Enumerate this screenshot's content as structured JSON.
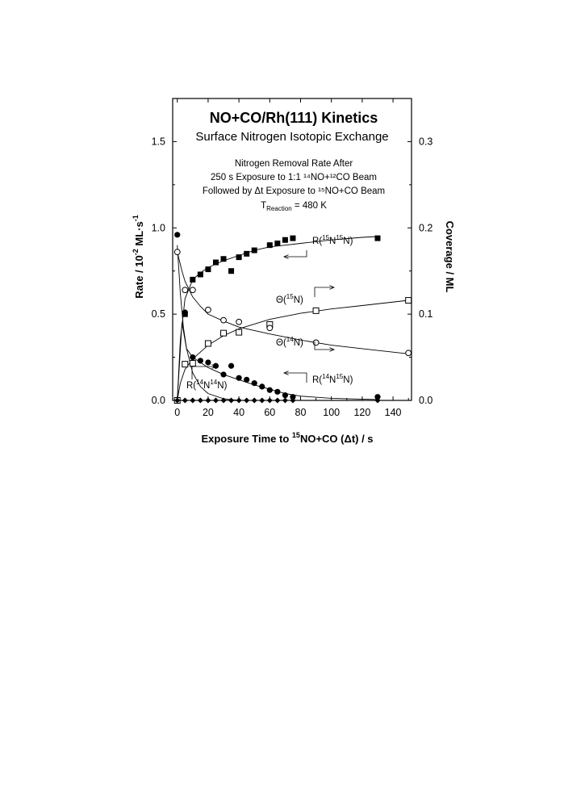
{
  "chart_data": {
    "type": "scatter",
    "title": "NO+CO/Rh(111) Kinetics",
    "subtitle": "Surface Nitrogen Isotopic Exchange",
    "annotation_lines": [
      "Nitrogen Removal Rate After",
      "250 s Exposure to 1:1 ¹⁴NO+¹²CO Beam",
      "Followed by Δt Exposure to ¹⁵NO+CO Beam"
    ],
    "reaction_temp": {
      "prefix": "T",
      "sub": "Reaction",
      "suffix": " = 480 K"
    },
    "xlabel": {
      "pre": "Exposure Time to ",
      "sup": "15",
      "post": "NO+CO (Δt) / s"
    },
    "ylabel_left": {
      "pre": "Rate / 10",
      "sup": "-2",
      "mid": " ML·s",
      "sup2": "-1"
    },
    "ylabel_right": "Coverage / ML",
    "xlim": [
      -3,
      152
    ],
    "ylim_left": [
      0,
      1.75
    ],
    "ylim_right": [
      0,
      0.35
    ],
    "xticks": [
      0,
      20,
      40,
      60,
      80,
      100,
      120,
      140
    ],
    "xtick_labels": [
      "0",
      "20",
      "40",
      "60",
      "80",
      "100",
      "120",
      "140"
    ],
    "yticks_left": [
      0.0,
      0.5,
      1.0,
      1.5
    ],
    "ytick_labels_left": [
      "0.0",
      "0.5",
      "1.0",
      "1.5"
    ],
    "yticks_right": [
      0.0,
      0.1,
      0.2,
      0.3
    ],
    "ytick_labels_right": [
      "0.0",
      "0.1",
      "0.2",
      "0.3"
    ],
    "series": [
      {
        "key": "r1515",
        "label": {
          "pre": "R(",
          "s1": "15",
          "m": "N",
          "s2": "15",
          "post": "N)"
        },
        "axis": "left",
        "marker": "filled-square",
        "x": [
          0,
          5,
          10,
          15,
          20,
          25,
          30,
          35,
          40,
          45,
          50,
          60,
          65,
          70,
          75,
          130
        ],
        "y": [
          0.0,
          0.5,
          0.7,
          0.73,
          0.76,
          0.8,
          0.82,
          0.75,
          0.83,
          0.85,
          0.87,
          0.9,
          0.91,
          0.93,
          0.94,
          0.94
        ],
        "fit_x": [
          0,
          2,
          5,
          10,
          15,
          20,
          30,
          40,
          50,
          60,
          70,
          80,
          100,
          120,
          130
        ],
        "fit_y": [
          0.0,
          0.35,
          0.59,
          0.7,
          0.74,
          0.77,
          0.81,
          0.84,
          0.87,
          0.89,
          0.9,
          0.91,
          0.93,
          0.945,
          0.95
        ]
      },
      {
        "key": "theta15",
        "label": {
          "pre": "Θ(",
          "s1": "15",
          "m": "N)",
          "s2": "",
          "post": ""
        },
        "axis": "right",
        "marker": "open-square",
        "x": [
          0,
          5,
          10,
          20,
          30,
          40,
          60,
          90,
          150
        ],
        "y": [
          0.0,
          0.042,
          0.043,
          0.066,
          0.078,
          0.079,
          0.088,
          0.104,
          0.116
        ],
        "fit_x": [
          0,
          2,
          5,
          10,
          20,
          30,
          40,
          60,
          80,
          100,
          120,
          150
        ],
        "fit_y": [
          0.0,
          0.02,
          0.036,
          0.048,
          0.064,
          0.075,
          0.083,
          0.094,
          0.101,
          0.106,
          0.11,
          0.116
        ]
      },
      {
        "key": "theta14",
        "label": {
          "pre": "Θ(",
          "s1": "14",
          "m": "N)",
          "s2": "",
          "post": ""
        },
        "axis": "right",
        "marker": "open-circle",
        "x": [
          0,
          5,
          10,
          20,
          30,
          40,
          60,
          90,
          150
        ],
        "y": [
          0.172,
          0.128,
          0.128,
          0.105,
          0.093,
          0.091,
          0.084,
          0.067,
          0.055
        ],
        "fit_x": [
          0,
          3,
          5,
          10,
          15,
          20,
          30,
          40,
          60,
          80,
          100,
          120,
          150
        ],
        "fit_y": [
          0.172,
          0.15,
          0.138,
          0.12,
          0.109,
          0.1,
          0.092,
          0.085,
          0.077,
          0.07,
          0.064,
          0.06,
          0.054
        ]
      },
      {
        "key": "r1415",
        "label": {
          "pre": "R(",
          "s1": "14",
          "m": "N",
          "s2": "15",
          "post": "N)"
        },
        "axis": "left",
        "marker": "filled-circle",
        "x": [
          0,
          5,
          10,
          15,
          20,
          25,
          30,
          35,
          40,
          45,
          50,
          55,
          60,
          65,
          70,
          75,
          130
        ],
        "y": [
          0.96,
          0.51,
          0.25,
          0.23,
          0.22,
          0.2,
          0.15,
          0.2,
          0.13,
          0.12,
          0.1,
          0.08,
          0.06,
          0.05,
          0.03,
          0.02,
          0.02
        ],
        "fit_x": [
          0,
          3,
          6,
          10,
          15,
          20,
          25,
          30,
          40,
          50,
          60,
          70,
          80,
          100,
          130
        ],
        "fit_y": [
          0.0,
          0.45,
          0.3,
          0.25,
          0.22,
          0.19,
          0.17,
          0.15,
          0.12,
          0.09,
          0.065,
          0.04,
          0.025,
          0.012,
          0.005
        ]
      },
      {
        "key": "r1414",
        "label": {
          "pre": "R(",
          "s1": "14",
          "m": "N",
          "s2": "14",
          "post": "N)"
        },
        "axis": "left",
        "marker": "filled-diamond",
        "x": [
          0,
          5,
          10,
          15,
          20,
          25,
          30,
          35,
          40,
          45,
          50,
          55,
          60,
          65,
          70,
          75,
          130
        ],
        "y": [
          0.0,
          0.0,
          0.0,
          0.0,
          0.0,
          0.0,
          0.0,
          0.0,
          0.0,
          0.0,
          0.0,
          0.0,
          0.0,
          0.0,
          0.0,
          0.0,
          0.0
        ],
        "fit_x": [
          0,
          2,
          4,
          6,
          10,
          15,
          20,
          30,
          40
        ],
        "fit_y": [
          0.9,
          0.62,
          0.42,
          0.3,
          0.16,
          0.08,
          0.04,
          0.01,
          0.0
        ]
      }
    ]
  }
}
